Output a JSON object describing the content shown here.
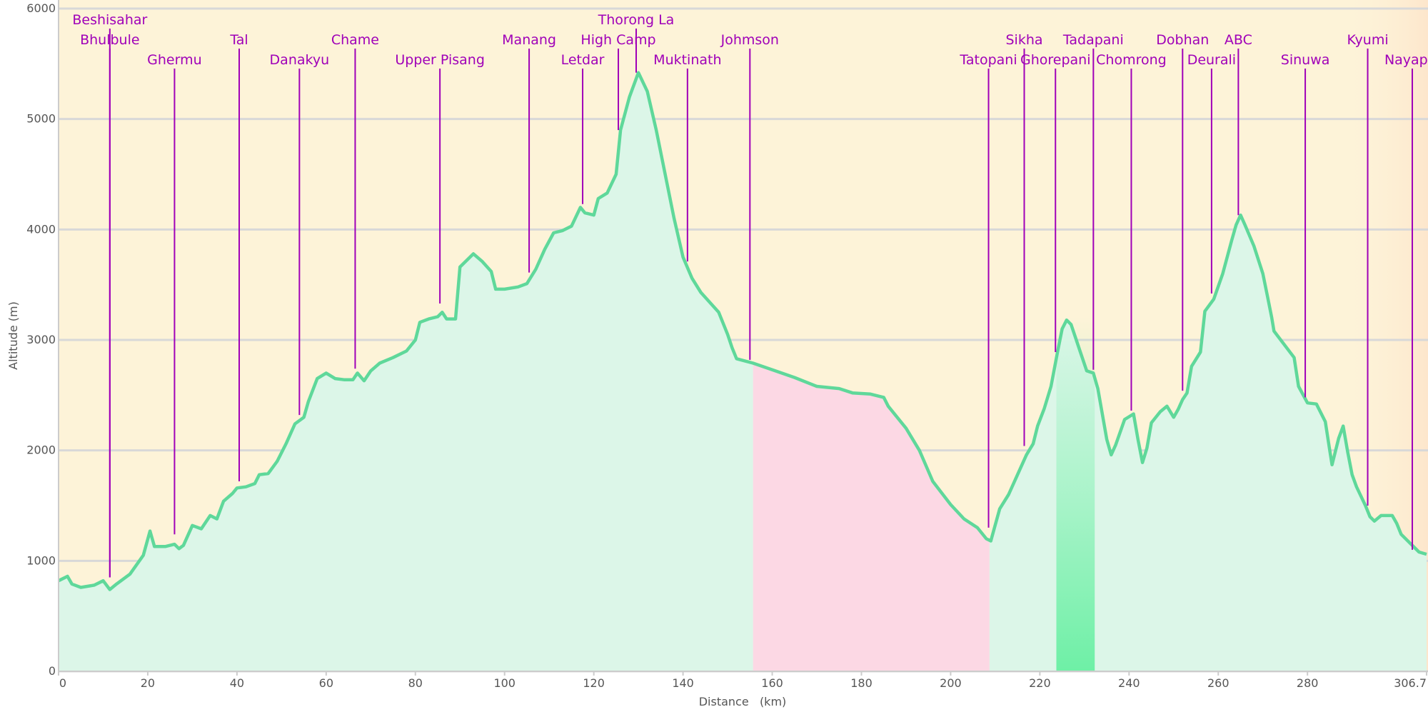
{
  "chart_data": {
    "type": "area",
    "xlabel": "Distance   (km)",
    "ylabel": "Altitude (m)",
    "xlim": [
      0,
      306.7
    ],
    "ylim": [
      0,
      6000
    ],
    "x_ticks": [
      "0",
      "20",
      "40",
      "60",
      "80",
      "100",
      "120",
      "140",
      "160",
      "180",
      "200",
      "220",
      "240",
      "260",
      "280",
      "306.7"
    ],
    "y_ticks": [
      "0",
      "1000",
      "2000",
      "3000",
      "4000",
      "5000",
      "6000"
    ],
    "grid": true,
    "colors": {
      "background": "#fdf3d8",
      "area_fill": "#dcf6e8",
      "line": "#5fd89a",
      "highlight_fill": "#fcd8e4",
      "band_fill": "#6ef0a6",
      "label": "#a000b8",
      "grid": "#d8d8d8"
    },
    "highlight_range": [
      155.7,
      208.7
    ],
    "band_range": [
      223.7,
      232.3
    ],
    "profile": [
      [
        0,
        820
      ],
      [
        2,
        860
      ],
      [
        3,
        790
      ],
      [
        5,
        760
      ],
      [
        8,
        780
      ],
      [
        10,
        820
      ],
      [
        11.5,
        740
      ],
      [
        13,
        790
      ],
      [
        16,
        880
      ],
      [
        19,
        1050
      ],
      [
        20.5,
        1270
      ],
      [
        21.5,
        1130
      ],
      [
        24,
        1130
      ],
      [
        26,
        1150
      ],
      [
        27,
        1110
      ],
      [
        28,
        1140
      ],
      [
        30,
        1320
      ],
      [
        32,
        1290
      ],
      [
        34,
        1410
      ],
      [
        35.5,
        1380
      ],
      [
        37,
        1540
      ],
      [
        39,
        1610
      ],
      [
        40,
        1660
      ],
      [
        42,
        1670
      ],
      [
        44,
        1700
      ],
      [
        45,
        1780
      ],
      [
        47,
        1790
      ],
      [
        49,
        1900
      ],
      [
        51,
        2060
      ],
      [
        53,
        2240
      ],
      [
        55,
        2300
      ],
      [
        56,
        2440
      ],
      [
        58,
        2650
      ],
      [
        60,
        2700
      ],
      [
        62,
        2650
      ],
      [
        64,
        2640
      ],
      [
        66,
        2640
      ],
      [
        67,
        2700
      ],
      [
        68.5,
        2630
      ],
      [
        70,
        2720
      ],
      [
        72,
        2790
      ],
      [
        75,
        2840
      ],
      [
        78,
        2900
      ],
      [
        80,
        3000
      ],
      [
        81,
        3160
      ],
      [
        83,
        3190
      ],
      [
        85,
        3210
      ],
      [
        86,
        3250
      ],
      [
        87,
        3190
      ],
      [
        89,
        3190
      ],
      [
        90,
        3660
      ],
      [
        93,
        3780
      ],
      [
        95,
        3710
      ],
      [
        97,
        3620
      ],
      [
        98,
        3460
      ],
      [
        100,
        3460
      ],
      [
        103,
        3480
      ],
      [
        105,
        3510
      ],
      [
        107,
        3640
      ],
      [
        109,
        3820
      ],
      [
        111,
        3970
      ],
      [
        113,
        3990
      ],
      [
        115,
        4030
      ],
      [
        117,
        4200
      ],
      [
        118,
        4150
      ],
      [
        120,
        4130
      ],
      [
        121,
        4280
      ],
      [
        123,
        4330
      ],
      [
        125,
        4500
      ],
      [
        126,
        4900
      ],
      [
        128,
        5200
      ],
      [
        130,
        5420
      ],
      [
        132,
        5250
      ],
      [
        134,
        4900
      ],
      [
        136,
        4500
      ],
      [
        138,
        4100
      ],
      [
        140,
        3750
      ],
      [
        142,
        3560
      ],
      [
        144,
        3430
      ],
      [
        146,
        3340
      ],
      [
        148,
        3250
      ],
      [
        150,
        3050
      ],
      [
        151,
        2930
      ],
      [
        152,
        2830
      ],
      [
        155.7,
        2790
      ],
      [
        160,
        2730
      ],
      [
        165,
        2660
      ],
      [
        170,
        2580
      ],
      [
        175,
        2560
      ],
      [
        178,
        2520
      ],
      [
        182,
        2510
      ],
      [
        184,
        2490
      ],
      [
        185,
        2480
      ],
      [
        186,
        2400
      ],
      [
        190,
        2200
      ],
      [
        193,
        2000
      ],
      [
        196,
        1720
      ],
      [
        200,
        1510
      ],
      [
        203,
        1380
      ],
      [
        206,
        1300
      ],
      [
        208,
        1200
      ],
      [
        209,
        1180
      ],
      [
        211,
        1470
      ],
      [
        213,
        1600
      ],
      [
        215,
        1780
      ],
      [
        217,
        1960
      ],
      [
        218.5,
        2060
      ],
      [
        219.5,
        2220
      ],
      [
        221,
        2380
      ],
      [
        222.5,
        2580
      ],
      [
        224,
        2900
      ],
      [
        225,
        3100
      ],
      [
        226,
        3180
      ],
      [
        227,
        3140
      ],
      [
        229,
        2900
      ],
      [
        230.5,
        2720
      ],
      [
        232,
        2700
      ],
      [
        233,
        2560
      ],
      [
        235,
        2100
      ],
      [
        236,
        1960
      ],
      [
        237,
        2050
      ],
      [
        239,
        2280
      ],
      [
        241,
        2330
      ],
      [
        242,
        2100
      ],
      [
        243,
        1890
      ],
      [
        244,
        2020
      ],
      [
        245,
        2250
      ],
      [
        247,
        2350
      ],
      [
        248.5,
        2400
      ],
      [
        250,
        2300
      ],
      [
        251,
        2370
      ],
      [
        252,
        2460
      ],
      [
        253,
        2520
      ],
      [
        254,
        2760
      ],
      [
        256,
        2890
      ],
      [
        257,
        3260
      ],
      [
        259,
        3370
      ],
      [
        261,
        3600
      ],
      [
        263,
        3900
      ],
      [
        264,
        4040
      ],
      [
        265,
        4130
      ],
      [
        266,
        4040
      ],
      [
        268,
        3850
      ],
      [
        270,
        3600
      ],
      [
        271,
        3400
      ],
      [
        272,
        3200
      ],
      [
        272.5,
        3080
      ],
      [
        277,
        2840
      ],
      [
        278,
        2580
      ],
      [
        280,
        2430
      ],
      [
        282,
        2420
      ],
      [
        284,
        2260
      ],
      [
        285,
        2000
      ],
      [
        285.5,
        1870
      ],
      [
        287,
        2110
      ],
      [
        288,
        2220
      ],
      [
        289,
        1990
      ],
      [
        290,
        1780
      ],
      [
        291,
        1670
      ],
      [
        293,
        1500
      ],
      [
        294,
        1400
      ],
      [
        295,
        1360
      ],
      [
        296.5,
        1410
      ],
      [
        299,
        1410
      ],
      [
        300,
        1340
      ],
      [
        301,
        1240
      ],
      [
        303,
        1160
      ],
      [
        305,
        1080
      ],
      [
        306.7,
        1060
      ]
    ],
    "annotations": [
      {
        "name": "Beshisahar",
        "x": 11.5,
        "y": 850,
        "row": 0
      },
      {
        "name": "Bhulbule",
        "x": 11.5,
        "y": 850,
        "row": 1
      },
      {
        "name": "Ghermu",
        "x": 26,
        "y": 1240,
        "row": 2
      },
      {
        "name": "Tal",
        "x": 40.5,
        "y": 1720,
        "row": 1
      },
      {
        "name": "Danakyu",
        "x": 54,
        "y": 2320,
        "row": 2
      },
      {
        "name": "Chame",
        "x": 66.5,
        "y": 2740,
        "row": 1
      },
      {
        "name": "Upper Pisang",
        "x": 85.5,
        "y": 3330,
        "row": 2
      },
      {
        "name": "Manang",
        "x": 105.5,
        "y": 3610,
        "row": 1
      },
      {
        "name": "Letdar",
        "x": 117.5,
        "y": 4230,
        "row": 2
      },
      {
        "name": "High Camp",
        "x": 125.5,
        "y": 4900,
        "row": 1
      },
      {
        "name": "Thorong La",
        "x": 129.5,
        "y": 5420,
        "row": 0
      },
      {
        "name": "Muktinath",
        "x": 141,
        "y": 3710,
        "row": 2
      },
      {
        "name": "Johmson",
        "x": 155,
        "y": 2820,
        "row": 1
      },
      {
        "name": "Tatopani",
        "x": 208.5,
        "y": 1300,
        "row": 2
      },
      {
        "name": "Sikha",
        "x": 216.5,
        "y": 2040,
        "row": 1
      },
      {
        "name": "Ghorepani",
        "x": 223.5,
        "y": 2890,
        "row": 2
      },
      {
        "name": "Tadapani",
        "x": 232,
        "y": 2730,
        "row": 1
      },
      {
        "name": "Chomrong",
        "x": 240.5,
        "y": 2360,
        "row": 2
      },
      {
        "name": "Dobhan",
        "x": 252,
        "y": 2540,
        "row": 1
      },
      {
        "name": "Deurali",
        "x": 258.5,
        "y": 3420,
        "row": 2
      },
      {
        "name": "ABC",
        "x": 264.5,
        "y": 4130,
        "row": 1
      },
      {
        "name": "Sinuwa",
        "x": 279.5,
        "y": 2480,
        "row": 2
      },
      {
        "name": "Kyumi",
        "x": 293.5,
        "y": 1500,
        "row": 1
      },
      {
        "name": "Nayapul",
        "x": 303.5,
        "y": 1100,
        "row": 2
      }
    ]
  }
}
